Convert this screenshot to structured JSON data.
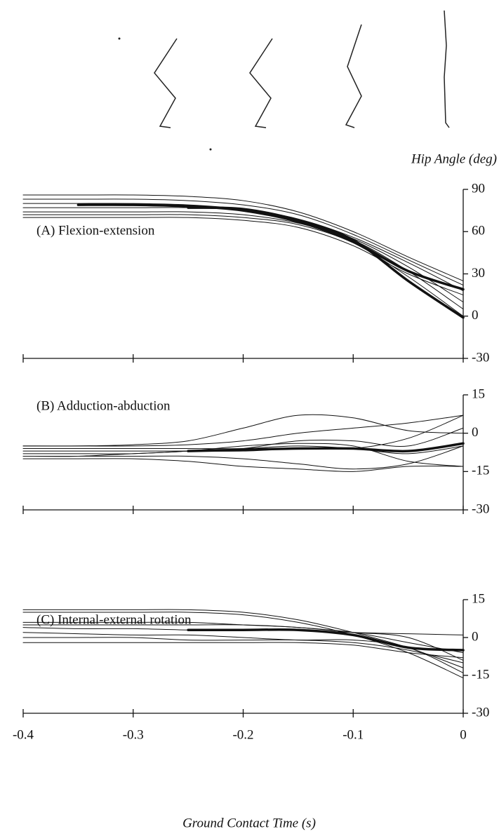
{
  "chart_data": [
    {
      "type": "line",
      "title": "(A)  Flexion-extension",
      "ylabel": "Hip Angle (deg)",
      "x": [
        -0.4,
        -0.35,
        -0.3,
        -0.25,
        -0.2,
        -0.15,
        -0.1,
        -0.05,
        0
      ],
      "xlim": [
        -0.4,
        0
      ],
      "xticks": [
        -0.4,
        -0.3,
        -0.2,
        -0.1,
        0
      ],
      "ylim": [
        -30,
        90
      ],
      "yticks": [
        90,
        60,
        30,
        0,
        -30
      ],
      "series": [
        {
          "color": "#111",
          "width": 1,
          "values": [
            86,
            86,
            86,
            85,
            82,
            74,
            60,
            42,
            25
          ]
        },
        {
          "color": "#111",
          "width": 1,
          "values": [
            83,
            83,
            83,
            82,
            79,
            72,
            58,
            40,
            22
          ]
        },
        {
          "color": "#111",
          "width": 1,
          "values": [
            80,
            80,
            80,
            79,
            76,
            69,
            56,
            38,
            18
          ]
        },
        {
          "color": "#111",
          "width": 1,
          "values": [
            77,
            77,
            77,
            77,
            75,
            68,
            55,
            35,
            10
          ]
        },
        {
          "color": "#111",
          "width": 1,
          "values": [
            74,
            74,
            74,
            74,
            72,
            66,
            54,
            32,
            5
          ]
        },
        {
          "color": "#111",
          "width": 1,
          "values": [
            72,
            72,
            72,
            72,
            70,
            65,
            52,
            28,
            0
          ]
        },
        {
          "color": "#111",
          "width": 1,
          "values": [
            70,
            70,
            70,
            70,
            68,
            63,
            50,
            30,
            15
          ]
        },
        {
          "color": "#111",
          "width": 3.5,
          "values": [
            null,
            null,
            null,
            77,
            76,
            68,
            54,
            25,
            -1
          ]
        },
        {
          "color": "#111",
          "width": 3.5,
          "values": [
            null,
            79,
            79,
            78,
            75,
            67,
            53,
            32,
            19
          ]
        }
      ]
    },
    {
      "type": "line",
      "title": "(B)  Adduction-abduction",
      "x": [
        -0.4,
        -0.35,
        -0.3,
        -0.25,
        -0.2,
        -0.15,
        -0.1,
        -0.05,
        0
      ],
      "xlim": [
        -0.4,
        0
      ],
      "xticks": [
        -0.4,
        -0.3,
        -0.2,
        -0.1,
        0
      ],
      "ylim": [
        -30,
        15
      ],
      "yticks": [
        15,
        0,
        -15,
        -30
      ],
      "series": [
        {
          "color": "#111",
          "width": 1,
          "values": [
            -5,
            -5,
            -4.5,
            -3,
            2,
            7,
            6,
            1,
            0
          ]
        },
        {
          "color": "#111",
          "width": 1,
          "values": [
            -5,
            -5,
            -5,
            -4.5,
            -3,
            0,
            2,
            4,
            7
          ]
        },
        {
          "color": "#111",
          "width": 1,
          "values": [
            -6,
            -6,
            -6,
            -6,
            -6,
            -5,
            -6,
            -8,
            -5
          ]
        },
        {
          "color": "#111",
          "width": 1,
          "values": [
            -8,
            -8,
            -8,
            -7,
            -6,
            -3,
            -3,
            -5,
            2
          ]
        },
        {
          "color": "#111",
          "width": 1,
          "values": [
            -9,
            -9,
            -9,
            -9,
            -10,
            -12,
            -14,
            -12,
            -5
          ]
        },
        {
          "color": "#111",
          "width": 1,
          "values": [
            -10,
            -10,
            -10,
            -11,
            -13,
            -14,
            -15,
            -13,
            -13
          ]
        },
        {
          "color": "#111",
          "width": 1,
          "values": [
            -9,
            -9,
            -8,
            -7,
            -5,
            -4,
            -5,
            -11,
            -13
          ]
        },
        {
          "color": "#111",
          "width": 1,
          "values": [
            -7,
            -7,
            -7,
            -7,
            -7,
            -6,
            -6,
            -2,
            7
          ]
        },
        {
          "color": "#111",
          "width": 3.5,
          "values": [
            null,
            null,
            null,
            -7,
            -6.5,
            -6,
            -6,
            -7,
            -4
          ]
        }
      ]
    },
    {
      "type": "line",
      "title": "(C)  Internal-external rotation",
      "xlabel": "Ground Contact Time (s)",
      "show_xtick_labels": true,
      "x": [
        -0.4,
        -0.35,
        -0.3,
        -0.25,
        -0.2,
        -0.15,
        -0.1,
        -0.05,
        0
      ],
      "xlim": [
        -0.4,
        0
      ],
      "xticks": [
        -0.4,
        -0.3,
        -0.2,
        -0.1,
        0
      ],
      "ylim": [
        -30,
        15
      ],
      "yticks": [
        15,
        0,
        -15,
        -30
      ],
      "series": [
        {
          "color": "#111",
          "width": 1,
          "values": [
            11,
            11,
            11,
            11,
            10,
            7,
            2,
            -4,
            -12
          ]
        },
        {
          "color": "#111",
          "width": 1,
          "values": [
            10,
            10,
            10,
            10,
            9,
            6,
            1,
            -6,
            -16
          ]
        },
        {
          "color": "#111",
          "width": 1,
          "values": [
            6,
            6,
            6,
            6,
            5,
            4,
            2,
            0,
            -9
          ]
        },
        {
          "color": "#111",
          "width": 1,
          "values": [
            5,
            5,
            5,
            5,
            5,
            4,
            2,
            -2,
            -6
          ]
        },
        {
          "color": "#111",
          "width": 1,
          "values": [
            4,
            3.5,
            3.5,
            3,
            3,
            3,
            2,
            1.5,
            1
          ]
        },
        {
          "color": "#111",
          "width": 1,
          "values": [
            2,
            1.5,
            1,
            1,
            0,
            -1,
            -1,
            -4,
            -14
          ]
        },
        {
          "color": "#111",
          "width": 1,
          "values": [
            -2,
            -2,
            -2,
            -2,
            -2,
            -2,
            -3,
            -6,
            -8
          ]
        },
        {
          "color": "#111",
          "width": 1,
          "values": [
            0,
            0,
            0,
            -1,
            -1,
            -1,
            -2,
            -5,
            -10
          ]
        },
        {
          "color": "#111",
          "width": 3.5,
          "values": [
            null,
            null,
            null,
            3,
            3,
            3,
            1,
            -4,
            -5
          ]
        }
      ]
    }
  ]
}
